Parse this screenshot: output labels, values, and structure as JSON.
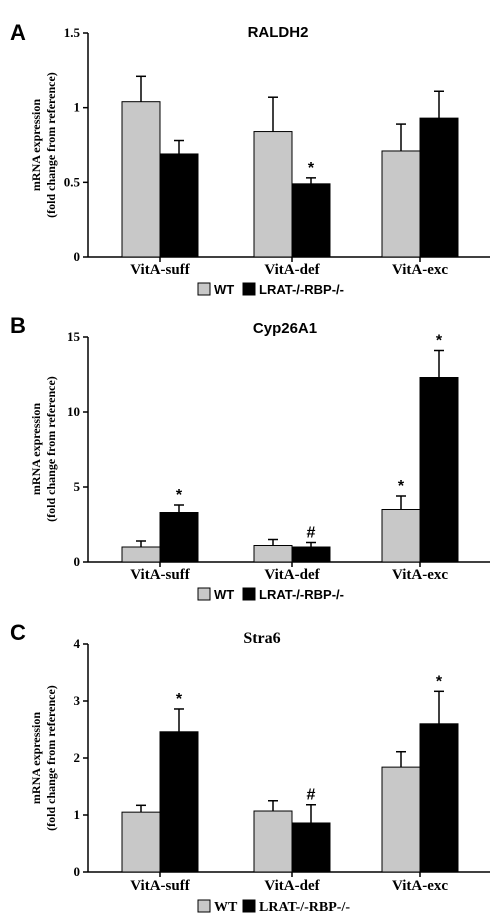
{
  "chart_data": [
    {
      "type": "bar",
      "panel": "A",
      "title": "RALDH2",
      "ylabel_line1": "mRNA expression",
      "ylabel_line2": "(fold change from reference)",
      "ylim": [
        0,
        1.5
      ],
      "yticks": [
        0,
        0.5,
        1,
        1.5
      ],
      "ytick_labels": [
        "0",
        "0.5",
        "1",
        "1.5"
      ],
      "categories": [
        "VitA-suff",
        "VitA-def",
        "VitA-exc"
      ],
      "series": [
        {
          "name": "WT",
          "color": "#c8c8c8",
          "values": [
            1.04,
            0.84,
            0.71
          ],
          "errors": [
            0.17,
            0.23,
            0.18
          ],
          "marks": [
            "",
            "",
            ""
          ]
        },
        {
          "name": "LRAT-/-RBP-/-",
          "color": "#000000",
          "values": [
            0.69,
            0.49,
            0.93
          ],
          "errors": [
            0.09,
            0.04,
            0.18
          ],
          "marks": [
            "",
            "*",
            ""
          ]
        }
      ],
      "legend_position": "bottom-center"
    },
    {
      "type": "bar",
      "panel": "B",
      "title": "Cyp26A1",
      "ylabel_line1": "mRNA expression",
      "ylabel_line2": "(fold change from reference)",
      "ylim": [
        0,
        15
      ],
      "yticks": [
        0,
        5,
        10,
        15
      ],
      "ytick_labels": [
        "0",
        "5",
        "10",
        "15"
      ],
      "categories": [
        "VitA-suff",
        "VitA-def",
        "VitA-exc"
      ],
      "series": [
        {
          "name": "WT",
          "color": "#c8c8c8",
          "values": [
            1.0,
            1.1,
            3.5
          ],
          "errors": [
            0.4,
            0.4,
            0.9
          ],
          "marks": [
            "",
            "",
            "*"
          ]
        },
        {
          "name": "LRAT-/-RBP-/-",
          "color": "#000000",
          "values": [
            3.3,
            1.0,
            12.3
          ],
          "errors": [
            0.5,
            0.3,
            1.8
          ],
          "marks": [
            "*",
            "#",
            "*"
          ]
        }
      ],
      "legend_position": "bottom-center"
    },
    {
      "type": "bar",
      "panel": "C",
      "title": "Stra6",
      "ylabel_line1": "mRNA expression",
      "ylabel_line2": "(fold change from reference)",
      "ylim": [
        0,
        4
      ],
      "yticks": [
        0,
        1,
        2,
        3,
        4
      ],
      "ytick_labels": [
        "0",
        "1",
        "2",
        "3",
        "4"
      ],
      "categories": [
        "VitA-suff",
        "VitA-def",
        "VitA-exc"
      ],
      "series": [
        {
          "name": "WT",
          "color": "#c8c8c8",
          "values": [
            1.05,
            1.07,
            1.84
          ],
          "errors": [
            0.12,
            0.18,
            0.27
          ],
          "marks": [
            "",
            "",
            ""
          ]
        },
        {
          "name": "LRAT-/-RBP-/-",
          "color": "#000000",
          "values": [
            2.46,
            0.86,
            2.6
          ],
          "errors": [
            0.4,
            0.32,
            0.57
          ],
          "marks": [
            "*",
            "#",
            "*"
          ]
        }
      ],
      "legend_position": "bottom-center"
    }
  ]
}
